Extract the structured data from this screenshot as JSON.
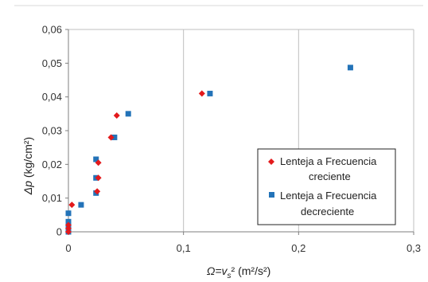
{
  "chart_data": {
    "type": "scatter",
    "title": "",
    "xlabel": "Ω=vs² (m²/s²)",
    "ylabel": "Δp (kg/cm²)",
    "xlim": [
      0,
      0.3
    ],
    "ylim": [
      0,
      0.06
    ],
    "x_ticks": [
      "0",
      "0,1",
      "0,2",
      "0,3"
    ],
    "y_ticks": [
      "0",
      "0,01",
      "0,02",
      "0,03",
      "0,04",
      "0,05",
      "0,06"
    ],
    "grid": "vertical",
    "legend_position": "bottom-right",
    "series": [
      {
        "name": "Lenteja a  Frecuencia creciente",
        "legend_lines": [
          "Lenteja a  Frecuencia",
          "creciente"
        ],
        "marker": "diamond",
        "color": "#e31a1c",
        "points": [
          {
            "x": 0.0,
            "y": 0.0
          },
          {
            "x": 0.0,
            "y": 0.001
          },
          {
            "x": 0.0,
            "y": 0.002
          },
          {
            "x": 0.003,
            "y": 0.008
          },
          {
            "x": 0.025,
            "y": 0.012
          },
          {
            "x": 0.026,
            "y": 0.016
          },
          {
            "x": 0.026,
            "y": 0.0205
          },
          {
            "x": 0.037,
            "y": 0.028
          },
          {
            "x": 0.042,
            "y": 0.0345
          },
          {
            "x": 0.116,
            "y": 0.041
          }
        ]
      },
      {
        "name": "Lenteja a Frecuencia decreciente",
        "legend_lines": [
          "Lenteja a Frecuencia",
          "decreciente"
        ],
        "marker": "square",
        "color": "#2373b8",
        "points": [
          {
            "x": 0.0,
            "y": 0.0
          },
          {
            "x": 0.0,
            "y": 0.0005
          },
          {
            "x": 0.0,
            "y": 0.001
          },
          {
            "x": 0.0,
            "y": 0.002
          },
          {
            "x": 0.0,
            "y": 0.003
          },
          {
            "x": 0.0,
            "y": 0.0055
          },
          {
            "x": 0.011,
            "y": 0.008
          },
          {
            "x": 0.024,
            "y": 0.0115
          },
          {
            "x": 0.024,
            "y": 0.016
          },
          {
            "x": 0.024,
            "y": 0.0215
          },
          {
            "x": 0.04,
            "y": 0.028
          },
          {
            "x": 0.052,
            "y": 0.035
          },
          {
            "x": 0.123,
            "y": 0.041
          },
          {
            "x": 0.245,
            "y": 0.0487
          }
        ]
      }
    ]
  }
}
